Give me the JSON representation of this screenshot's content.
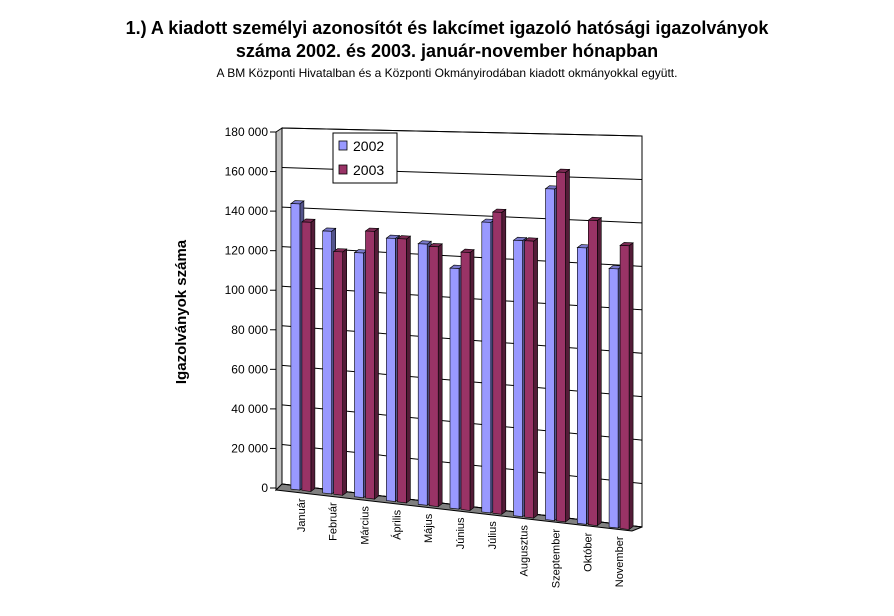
{
  "title": {
    "line1": "1.) A kiadott személyi azonosítót és lakcímet igazoló hatósági igazolványok",
    "line2": "száma 2002. és 2003. január-november hónapban"
  },
  "subtitle": "A BM Központi Hivatalban és a Központi Okmányirodában kiadott okmányokkal együtt.",
  "colors": {
    "series_2002": "#9999ff",
    "series_2003": "#993366",
    "floor": "#808080",
    "wall": "#ffffff",
    "grid": "#000000"
  },
  "chart_data": {
    "type": "bar",
    "view": "3d-clustered-column",
    "ylabel": "Igazolványok száma",
    "xlabel": "",
    "ylim": [
      0,
      180000
    ],
    "yticks": [
      0,
      20000,
      40000,
      60000,
      80000,
      100000,
      120000,
      140000,
      160000,
      180000
    ],
    "ytick_labels": [
      "0",
      "20 000",
      "40 000",
      "60 000",
      "80 000",
      "100 000",
      "120 000",
      "140 000",
      "160 000",
      "180 000"
    ],
    "categories": [
      "Január",
      "Február",
      "Március",
      "Április",
      "Május",
      "Június",
      "Július",
      "Augusztus",
      "Szeptember",
      "Október",
      "November"
    ],
    "series": [
      {
        "name": "2002",
        "values": [
          144000,
          131000,
          121000,
          129000,
          127000,
          116000,
          139000,
          131000,
          156000,
          129000,
          120000
        ]
      },
      {
        "name": "2003",
        "values": [
          135000,
          121000,
          132000,
          129000,
          126000,
          124000,
          144000,
          131000,
          164000,
          142000,
          131000
        ]
      }
    ],
    "grid": true,
    "legend": "top-left"
  }
}
